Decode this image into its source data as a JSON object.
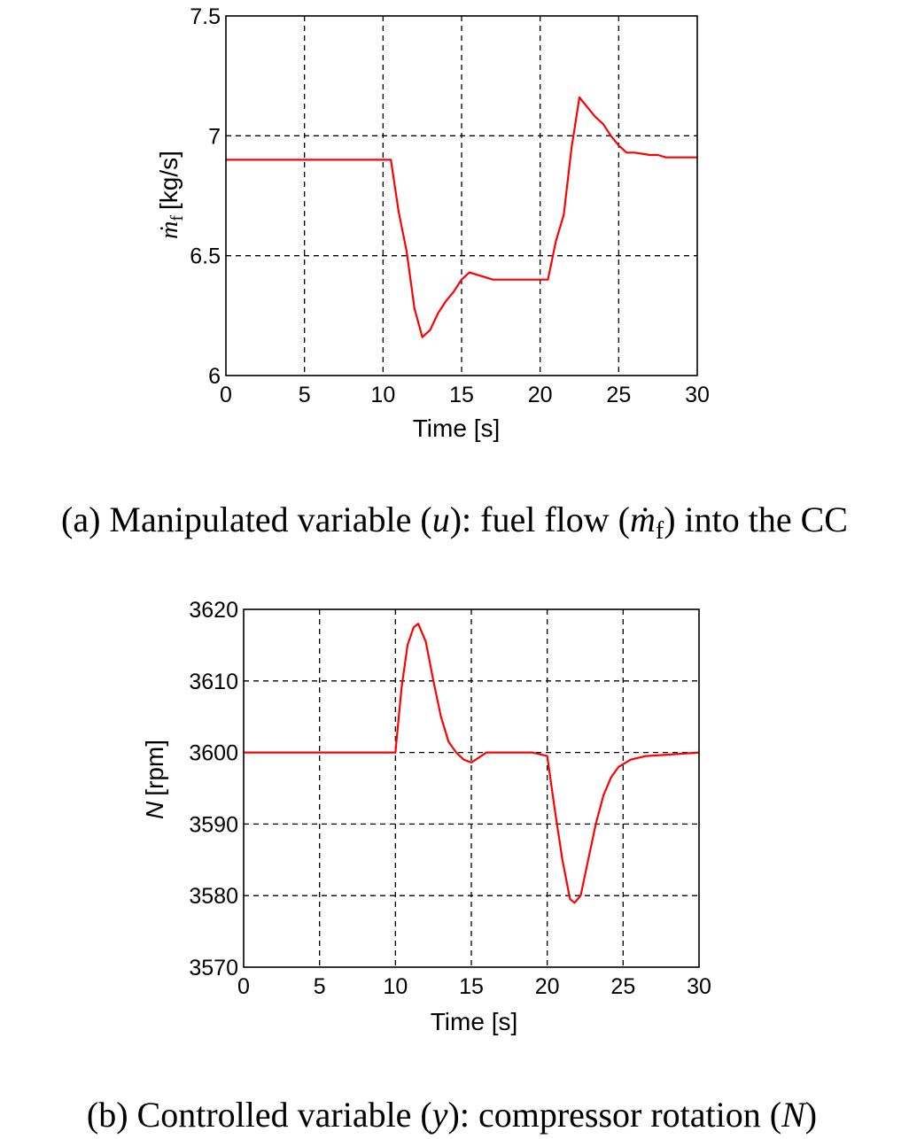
{
  "chart_data": [
    {
      "type": "line",
      "xlabel": "Time [s]",
      "ylabel": {
        "symbol": "ṁ",
        "subscript": "f",
        "unit": "[kg/s]"
      },
      "xlim": [
        0,
        30
      ],
      "ylim": [
        6,
        7.5
      ],
      "xticks": [
        "0",
        "5",
        "10",
        "15",
        "20",
        "25",
        "30"
      ],
      "yticks": [
        "6",
        "6.5",
        "7",
        "7.5"
      ],
      "grid": true,
      "caption": {
        "prefix": "(a) Manipulated variable (",
        "var": "u",
        "mid": "): fuel flow (",
        "sym": "ṁ",
        "sub": "f",
        "suffix": ") into the CC"
      },
      "series": [
        {
          "color": "#ff0000",
          "x": [
            0,
            10.5,
            11.0,
            11.5,
            12.0,
            12.5,
            13.0,
            13.5,
            14.0,
            14.5,
            15.0,
            15.5,
            16.0,
            17.0,
            18.0,
            19.0,
            20.0,
            20.5,
            21.0,
            21.5,
            22.0,
            22.5,
            23.0,
            23.5,
            24.0,
            24.5,
            25.0,
            25.5,
            26.0,
            27.0,
            27.5,
            28.0,
            30.0
          ],
          "y": [
            6.9,
            6.9,
            6.68,
            6.52,
            6.28,
            6.16,
            6.19,
            6.26,
            6.31,
            6.35,
            6.4,
            6.43,
            6.42,
            6.4,
            6.4,
            6.4,
            6.4,
            6.4,
            6.56,
            6.67,
            6.95,
            7.16,
            7.12,
            7.08,
            7.05,
            7.0,
            6.96,
            6.93,
            6.93,
            6.92,
            6.92,
            6.91,
            6.91
          ]
        }
      ]
    },
    {
      "type": "line",
      "xlabel": "Time [s]",
      "ylabel": {
        "symbol": "N",
        "unit": "[rpm]"
      },
      "xlim": [
        0,
        30
      ],
      "ylim": [
        3570,
        3620
      ],
      "xticks": [
        "0",
        "5",
        "10",
        "15",
        "20",
        "25",
        "30"
      ],
      "yticks": [
        "3570",
        "3580",
        "3590",
        "3600",
        "3610",
        "3620"
      ],
      "grid": true,
      "caption": {
        "prefix": "(b) Controlled variable (",
        "var": "y",
        "mid": "): compressor rotation (",
        "sym": "N",
        "suffix": ")"
      },
      "series": [
        {
          "color": "#ff0000",
          "x": [
            0,
            9.9,
            10.0,
            10.4,
            10.8,
            11.2,
            11.5,
            12.0,
            12.5,
            13.0,
            13.5,
            14.0,
            14.5,
            15.0,
            15.5,
            16.0,
            17.0,
            18.0,
            19.0,
            20.0,
            20.5,
            21.0,
            21.5,
            21.8,
            22.2,
            22.7,
            23.2,
            23.7,
            24.2,
            24.7,
            25.5,
            26.5,
            28.0,
            30.0
          ],
          "y": [
            3600,
            3600,
            3600,
            3609,
            3615,
            3617.5,
            3618,
            3615.5,
            3610,
            3605,
            3601.5,
            3600,
            3599,
            3598.6,
            3599.3,
            3600,
            3600,
            3600,
            3600,
            3599.5,
            3592,
            3585,
            3579.5,
            3579,
            3580,
            3585,
            3590,
            3594,
            3596.5,
            3598,
            3599,
            3599.5,
            3599.7,
            3600
          ]
        }
      ]
    }
  ]
}
